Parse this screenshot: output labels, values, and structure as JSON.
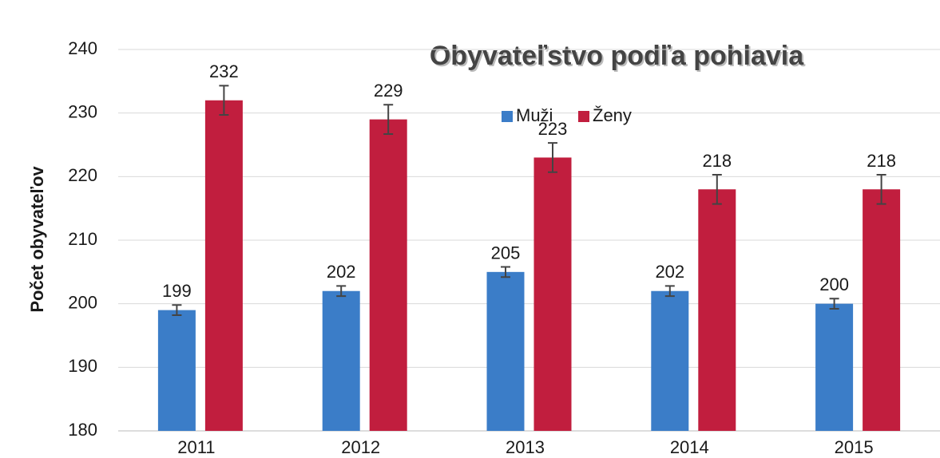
{
  "chart_data": {
    "type": "bar",
    "title": "Obyvateľstvo podľa pohlavia",
    "ylabel": "Počet obyvateľov",
    "categories": [
      "2011",
      "2012",
      "2013",
      "2014",
      "2015"
    ],
    "series": [
      {
        "name": "Muži",
        "color": "#3b7dc8",
        "values": [
          199,
          202,
          205,
          202,
          200
        ],
        "errors": [
          0.8,
          0.8,
          0.8,
          0.8,
          0.8
        ]
      },
      {
        "name": "Ženy",
        "color": "#c11e3e",
        "values": [
          232,
          229,
          223,
          218,
          218
        ],
        "errors": [
          2.3,
          2.3,
          2.3,
          2.3,
          2.3
        ]
      }
    ],
    "ylim": [
      180,
      240
    ],
    "yticks": [
      180,
      190,
      200,
      210,
      220,
      230,
      240
    ],
    "grid": true,
    "legend": "top"
  }
}
